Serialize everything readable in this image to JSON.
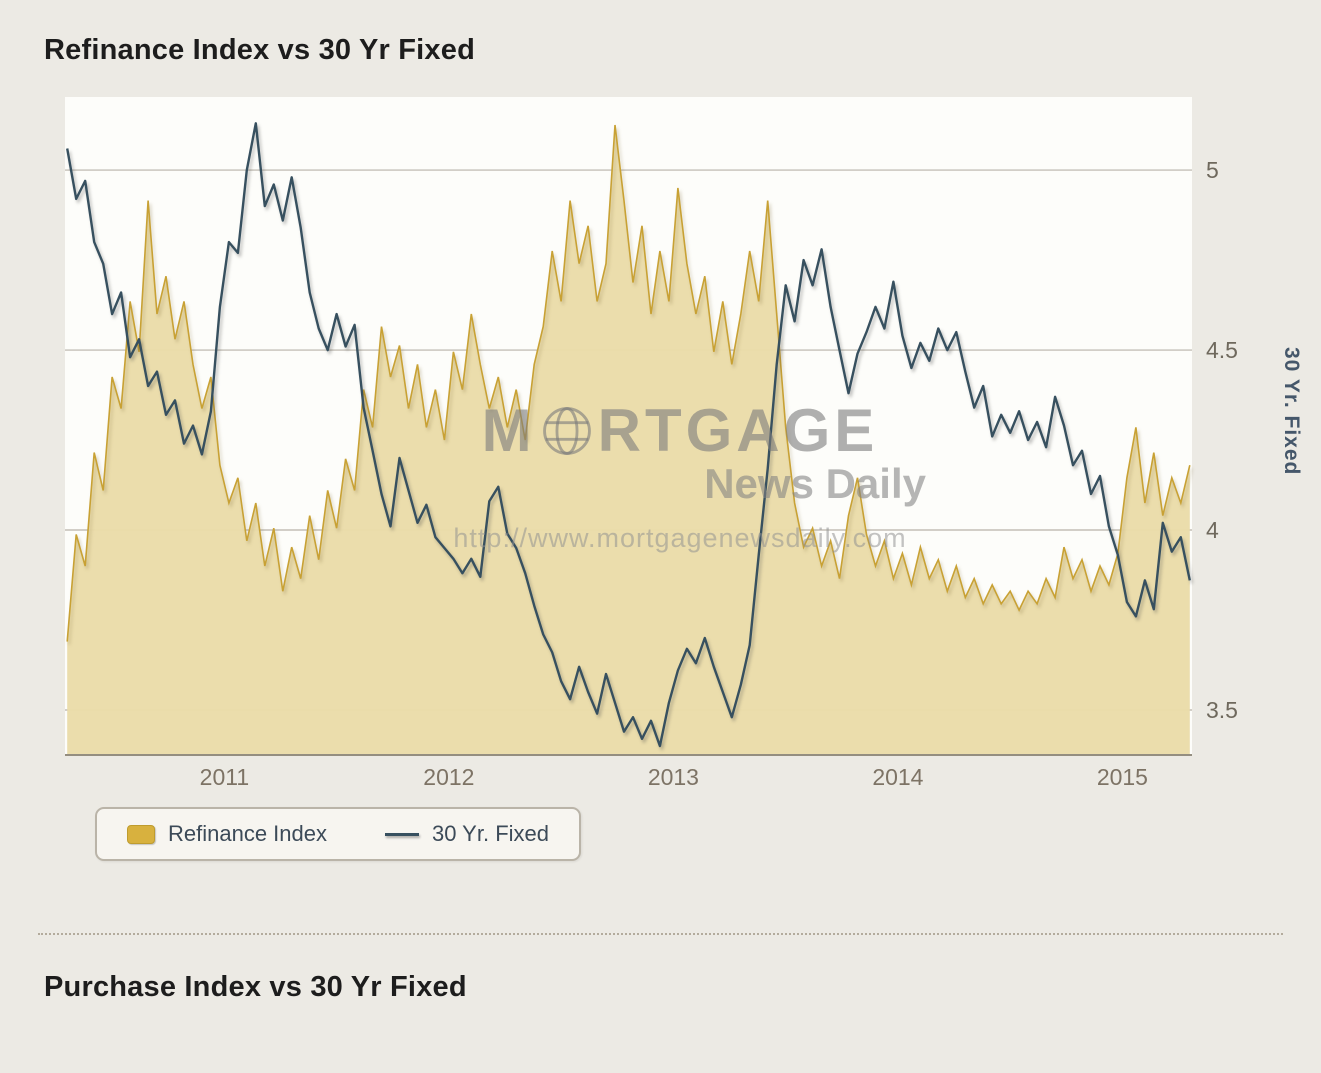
{
  "page": {
    "title": "Refinance Index vs 30 Yr Fixed",
    "second_title": "Purchase Index vs 30 Yr Fixed"
  },
  "watermark": {
    "part1": "M",
    "part2": "RTGAGE",
    "line2": "News Daily",
    "url": "http://www.mortgagenewsdaily.com",
    "globe_icon": "globe-icon",
    "color": "#7c7c7c"
  },
  "legend": {
    "items": [
      {
        "label": "Refinance Index",
        "swatch": "area",
        "color": "#d8b13e"
      },
      {
        "label": "30 Yr. Fixed",
        "swatch": "line",
        "color": "#37505f"
      }
    ]
  },
  "colors": {
    "background": "#eceae4",
    "plot_background": "#fdfdfa",
    "area_fill": "#eadca9",
    "area_edge": "#c8a134",
    "line": "#37505f",
    "grid": "#b8b3a9"
  },
  "chart_data": {
    "type": "area+line",
    "title": "Refinance Index vs 30 Yr Fixed",
    "x_start": 2010.3,
    "x_step": 0.04,
    "x_range": [
      2010.29,
      2015.31
    ],
    "x_ticks": [
      2011,
      2012,
      2013,
      2014,
      2015
    ],
    "grid": true,
    "legend_position": "bottom-left",
    "right_axis": {
      "label": "30 Yr. Fixed",
      "ticks": [
        5,
        4.5,
        4,
        3.5
      ],
      "range": [
        3.375,
        5.153
      ]
    },
    "left_axis": {
      "label": "Refinance Index (axis unlabeled, normalized 0-100)",
      "range": [
        0,
        100
      ]
    },
    "series": [
      {
        "name": "Refinance Index",
        "type": "area",
        "axis": "left",
        "color": "#c8a134",
        "fill": "#eadca9",
        "values": [
          18,
          35,
          30,
          48,
          42,
          60,
          55,
          72,
          64,
          88,
          70,
          76,
          66,
          72,
          62,
          55,
          60,
          46,
          40,
          44,
          34,
          40,
          30,
          36,
          26,
          33,
          28,
          38,
          31,
          42,
          36,
          47,
          42,
          58,
          52,
          68,
          60,
          65,
          55,
          62,
          52,
          58,
          50,
          64,
          58,
          70,
          62,
          55,
          60,
          52,
          58,
          50,
          62,
          68,
          80,
          72,
          88,
          78,
          84,
          72,
          78,
          100,
          88,
          75,
          84,
          70,
          80,
          72,
          90,
          78,
          70,
          76,
          64,
          72,
          62,
          70,
          80,
          72,
          88,
          70,
          52,
          40,
          33,
          36,
          30,
          34,
          28,
          38,
          44,
          35,
          30,
          34,
          28,
          32,
          27,
          33,
          28,
          31,
          26,
          30,
          25,
          28,
          24,
          27,
          24,
          26,
          23,
          26,
          24,
          28,
          25,
          33,
          28,
          31,
          26,
          30,
          27,
          32,
          44,
          52,
          40,
          48,
          38,
          44,
          40,
          46
        ]
      },
      {
        "name": "30 Yr. Fixed",
        "type": "line",
        "axis": "right",
        "color": "#37505f",
        "values": [
          5.06,
          4.92,
          4.97,
          4.8,
          4.74,
          4.6,
          4.66,
          4.48,
          4.53,
          4.4,
          4.44,
          4.32,
          4.36,
          4.24,
          4.29,
          4.21,
          4.33,
          4.62,
          4.8,
          4.77,
          5.0,
          5.13,
          4.9,
          4.96,
          4.86,
          4.98,
          4.84,
          4.66,
          4.56,
          4.5,
          4.6,
          4.51,
          4.57,
          4.34,
          4.22,
          4.1,
          4.01,
          4.2,
          4.11,
          4.02,
          4.07,
          3.98,
          3.95,
          3.92,
          3.88,
          3.92,
          3.87,
          4.08,
          4.12,
          3.99,
          3.95,
          3.88,
          3.79,
          3.71,
          3.66,
          3.58,
          3.53,
          3.62,
          3.55,
          3.49,
          3.6,
          3.52,
          3.44,
          3.48,
          3.42,
          3.47,
          3.4,
          3.52,
          3.61,
          3.67,
          3.63,
          3.7,
          3.62,
          3.55,
          3.48,
          3.57,
          3.68,
          3.93,
          4.17,
          4.46,
          4.68,
          4.58,
          4.75,
          4.68,
          4.78,
          4.62,
          4.5,
          4.38,
          4.49,
          4.55,
          4.62,
          4.56,
          4.69,
          4.54,
          4.45,
          4.52,
          4.47,
          4.56,
          4.5,
          4.55,
          4.44,
          4.34,
          4.4,
          4.26,
          4.32,
          4.27,
          4.33,
          4.25,
          4.3,
          4.23,
          4.37,
          4.29,
          4.18,
          4.22,
          4.1,
          4.15,
          4.01,
          3.93,
          3.8,
          3.76,
          3.86,
          3.78,
          4.02,
          3.94,
          3.98,
          3.86
        ]
      }
    ]
  }
}
